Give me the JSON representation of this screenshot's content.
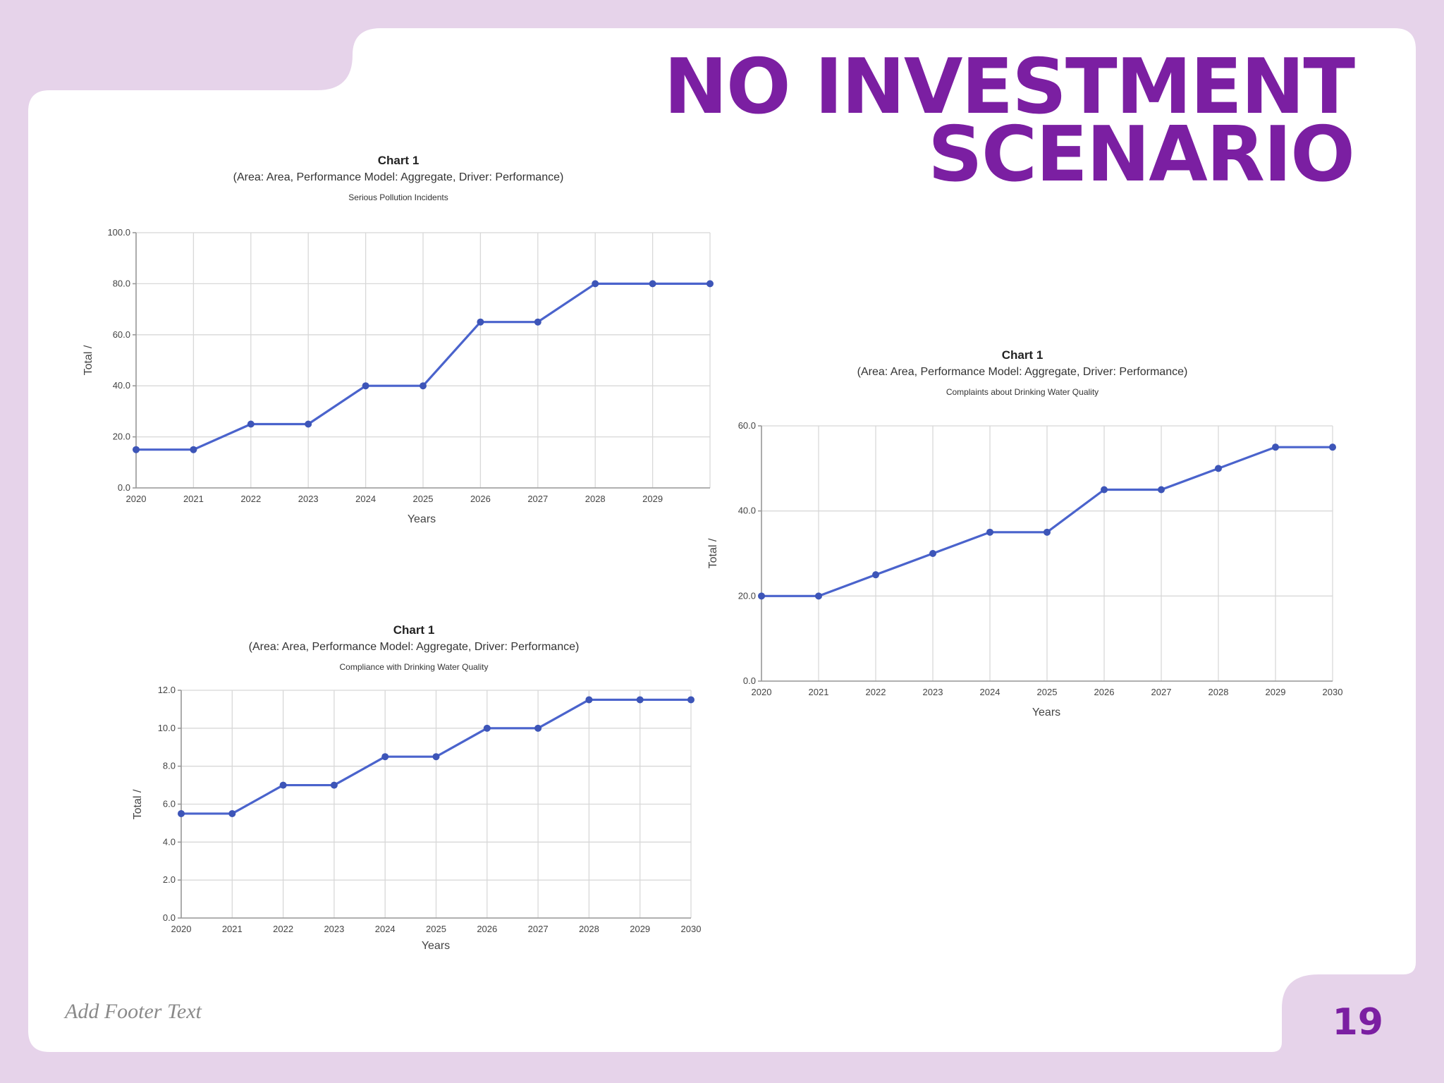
{
  "slide": {
    "title_line1": "NO INVESTMENT",
    "title_line2": "SCENARIO",
    "footer": "Add Footer Text",
    "page_number": "19",
    "colors": {
      "background": "#e6d3ea",
      "panel": "#ffffff",
      "title": "#7b1fa2",
      "series": "#4a63cc"
    }
  },
  "chart_data": [
    {
      "type": "line",
      "title": "Chart 1",
      "subtitle": "(Area: Area, Performance Model: Aggregate, Driver: Performance)",
      "series_title": "Serious Pollution Incidents",
      "xlabel": "Years",
      "ylabel": "Total /",
      "x": [
        "2020",
        "2021",
        "2022",
        "2023",
        "2024",
        "2025",
        "2026",
        "2027",
        "2028",
        "2029",
        "2030"
      ],
      "x_tick_labels": [
        "2020",
        "2021",
        "2022",
        "2023",
        "2024",
        "2025",
        "2026",
        "2027",
        "2028",
        "2029",
        ""
      ],
      "y_ticks": [
        "0.0",
        "20.0",
        "40.0",
        "60.0",
        "80.0",
        "100.0"
      ],
      "ylim": [
        0,
        100
      ],
      "grid": true,
      "series": [
        {
          "values": [
            15,
            15,
            25,
            25,
            40,
            40,
            65,
            65,
            80,
            80,
            80
          ]
        }
      ]
    },
    {
      "type": "line",
      "title": "Chart 1",
      "subtitle": "(Area: Area, Performance Model: Aggregate, Driver: Performance)",
      "series_title": "Complaints about Drinking Water Quality",
      "xlabel": "Years",
      "ylabel": "Total /",
      "x": [
        "2020",
        "2021",
        "2022",
        "2023",
        "2024",
        "2025",
        "2026",
        "2027",
        "2028",
        "2029",
        "2030"
      ],
      "x_tick_labels": [
        "2020",
        "2021",
        "2022",
        "2023",
        "2024",
        "2025",
        "2026",
        "2027",
        "2028",
        "2029",
        "2030"
      ],
      "y_ticks": [
        "0.0",
        "20.0",
        "40.0",
        "60.0"
      ],
      "ylim": [
        0,
        60
      ],
      "grid": true,
      "series": [
        {
          "values": [
            20,
            20,
            25,
            30,
            35,
            35,
            45,
            45,
            50,
            55,
            55
          ]
        }
      ]
    },
    {
      "type": "line",
      "title": "Chart 1",
      "subtitle": "(Area: Area, Performance Model: Aggregate, Driver: Performance)",
      "series_title": "Compliance with Drinking Water Quality",
      "xlabel": "Years",
      "ylabel": "Total /",
      "x": [
        "2020",
        "2021",
        "2022",
        "2023",
        "2024",
        "2025",
        "2026",
        "2027",
        "2028",
        "2029",
        "2030"
      ],
      "x_tick_labels": [
        "2020",
        "2021",
        "2022",
        "2023",
        "2024",
        "2025",
        "2026",
        "2027",
        "2028",
        "2029",
        "2030"
      ],
      "y_ticks": [
        "0.0",
        "2.0",
        "4.0",
        "6.0",
        "8.0",
        "10.0",
        "12.0"
      ],
      "ylim": [
        0,
        12
      ],
      "grid": true,
      "series": [
        {
          "values": [
            5.5,
            5.5,
            7,
            7,
            8.5,
            8.5,
            10,
            10,
            11.5,
            11.5,
            11.5
          ]
        }
      ]
    }
  ]
}
